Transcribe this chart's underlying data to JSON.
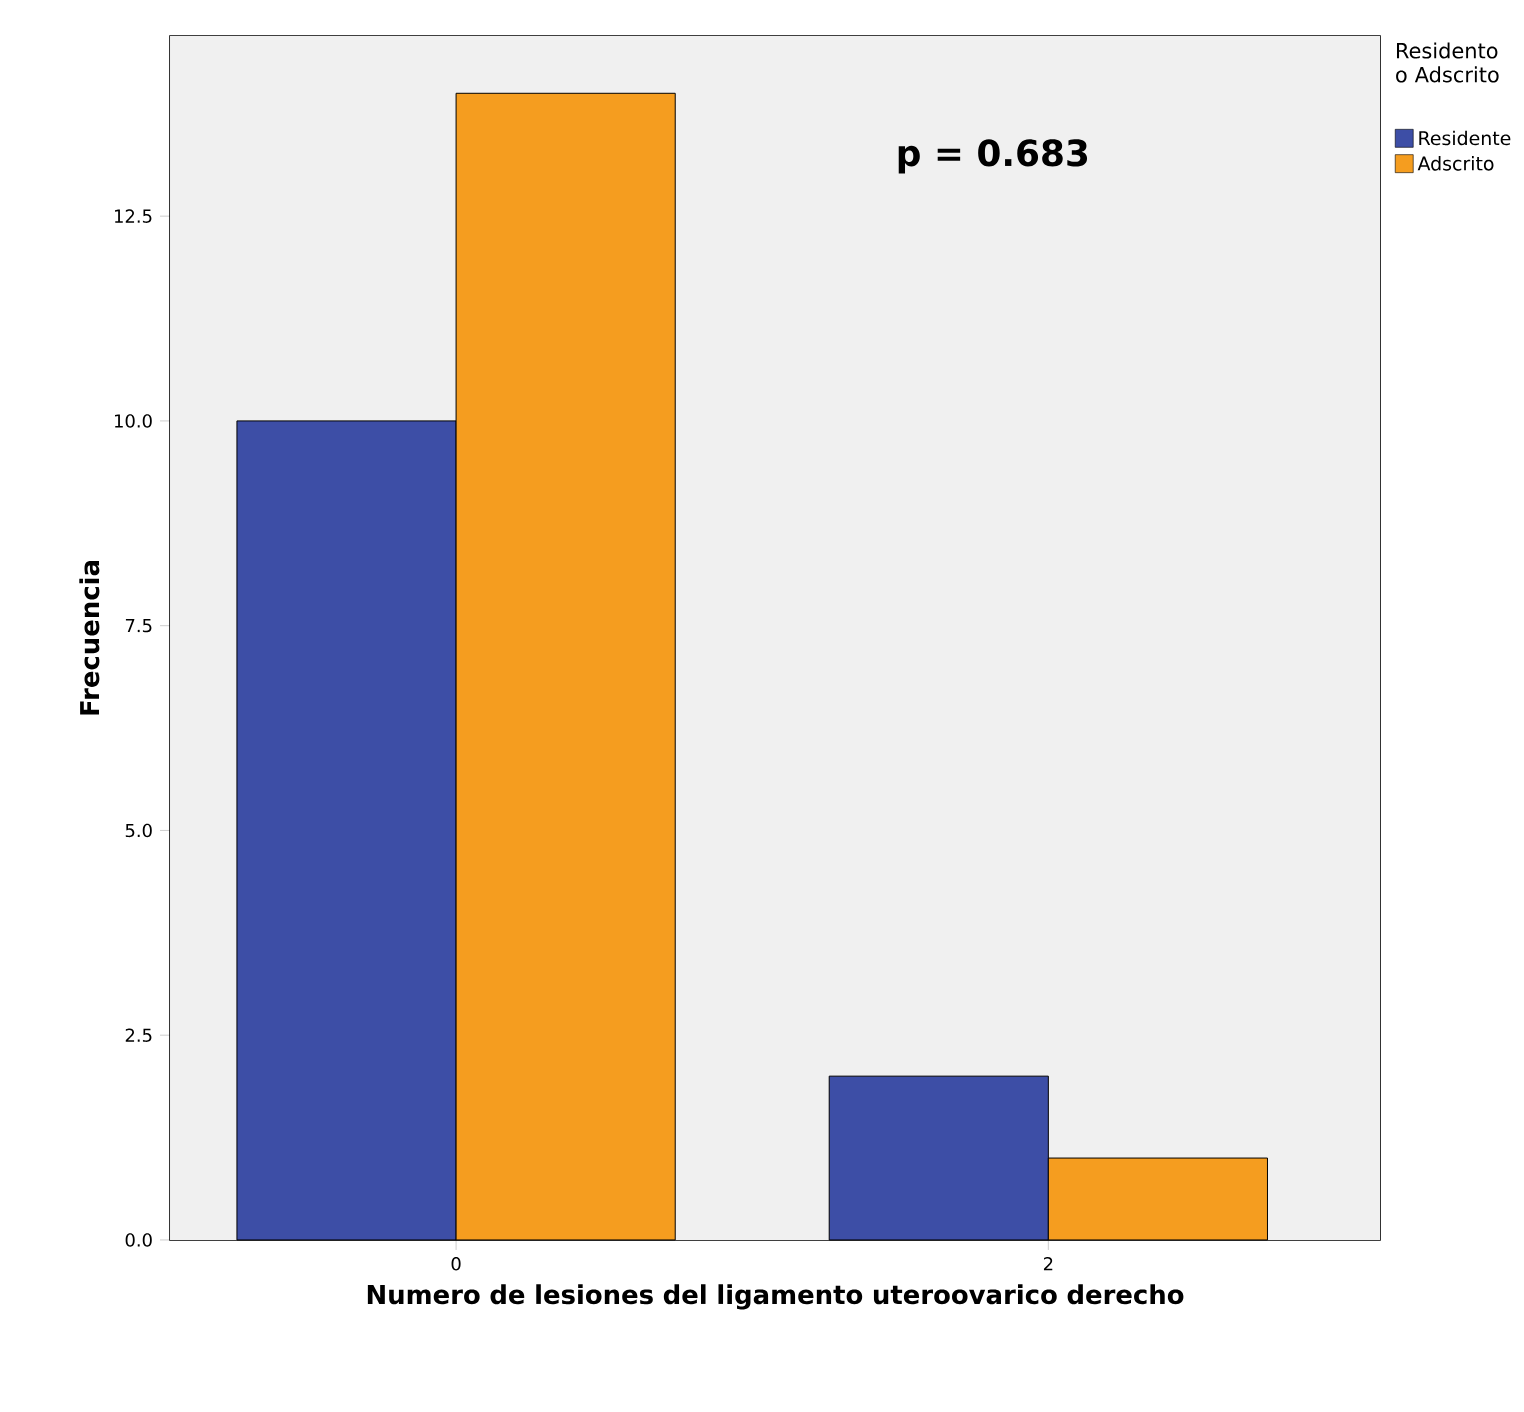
{
  "chart_data": {
    "type": "bar",
    "xlabel": "Numero de lesiones del ligamento uteroovarico derecho",
    "ylabel": "Frecuencia",
    "legend_title": "Residento o Adscrito",
    "categories": [
      "0",
      "2"
    ],
    "series": [
      {
        "name": "Residente",
        "color": "#3d4ea6",
        "values": [
          10,
          2
        ]
      },
      {
        "name": "Adscrito",
        "color": "#f59d1f",
        "values": [
          14,
          1
        ]
      }
    ],
    "ylim": [
      0,
      14.7
    ],
    "yticks": [
      {
        "value": 0,
        "label": "0.0"
      },
      {
        "value": 2.5,
        "label": "2.5"
      },
      {
        "value": 5,
        "label": "5.0"
      },
      {
        "value": 7.5,
        "label": "7.5"
      },
      {
        "value": 10,
        "label": "10.0"
      },
      {
        "value": 12.5,
        "label": "12.5"
      }
    ],
    "annotations": [
      "p = 0.683"
    ],
    "legend": "top right"
  }
}
